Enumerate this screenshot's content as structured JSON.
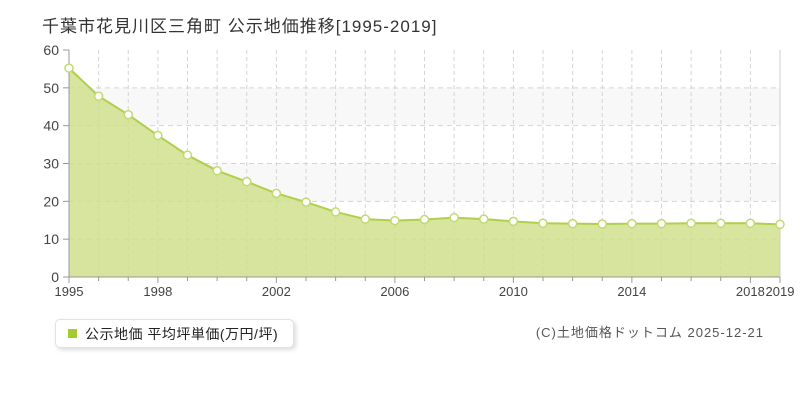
{
  "title": "千葉市花見川区三角町 公示地価推移[1995-2019]",
  "legend": {
    "label": "公示地価 平均坪単価(万円/坪)",
    "marker_color": "#a3cb2f"
  },
  "copyright": "(C)土地価格ドットコム 2025-12-21",
  "chart_data": {
    "type": "area",
    "title": "千葉市花見川区三角町 公示地価推移[1995-2019]",
    "x": [
      1995,
      1996,
      1997,
      1998,
      1999,
      2000,
      2001,
      2002,
      2003,
      2004,
      2005,
      2006,
      2007,
      2008,
      2009,
      2010,
      2011,
      2012,
      2013,
      2014,
      2015,
      2016,
      2017,
      2018,
      2019
    ],
    "series": [
      {
        "name": "公示地価 平均坪単価(万円/坪)",
        "values": [
          55.2,
          47.8,
          42.9,
          37.4,
          32.2,
          28.1,
          25.2,
          22.1,
          19.8,
          17.2,
          15.3,
          14.9,
          15.2,
          15.7,
          15.3,
          14.7,
          14.2,
          14.1,
          14.0,
          14.1,
          14.1,
          14.2,
          14.2,
          14.2,
          13.9
        ]
      }
    ],
    "xlabel": "",
    "ylabel": "万円/坪",
    "ylim": [
      0,
      60
    ],
    "yticks": [
      0,
      10,
      20,
      30,
      40,
      50,
      60
    ],
    "xtick_labels": [
      1995,
      1998,
      2002,
      2006,
      2010,
      2014,
      2018,
      2019
    ],
    "grid": true,
    "legend_position": "bottom-left",
    "colors": {
      "area_fill": "#cdde87",
      "area_opacity": "0.8",
      "line": "#afd04d",
      "marker_fill": "#ffffff",
      "marker_stroke": "#c2da6e",
      "grid": "#d4d4d4",
      "band_even": "#ffffff",
      "band_odd": "#f8f8f8",
      "axis": "#999999",
      "tick_text": "#444444",
      "plot_border_right": "#cccccc"
    }
  }
}
